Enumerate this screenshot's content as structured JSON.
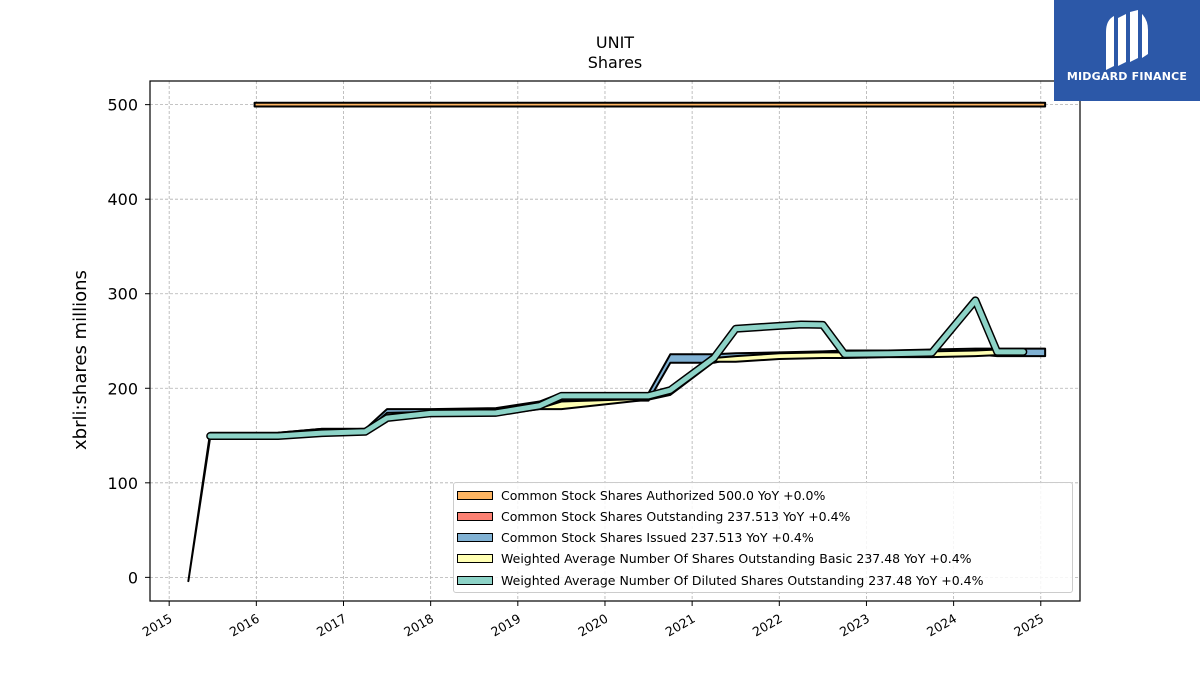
{
  "logo": {
    "text": "MIDGARD FINANCE",
    "color": "#2c58a8"
  },
  "chart_data": {
    "type": "area",
    "title": "UNIT",
    "subtitle": "Shares",
    "ylabel": "xbrli:shares millions",
    "xlabel": "",
    "xlim": [
      2014.78,
      2025.45
    ],
    "ylim": [
      -25,
      525
    ],
    "yticks": [
      0,
      100,
      200,
      300,
      400,
      500
    ],
    "xticks": [
      "2015",
      "2016",
      "2017",
      "2018",
      "2019",
      "2020",
      "2021",
      "2022",
      "2023",
      "2024",
      "2025"
    ],
    "grid": true,
    "legend_position": "lower-right",
    "series": [
      {
        "name": "Common Stock Shares Authorized  500.0 YoY +0.0%",
        "color": "#fdb462",
        "x": [
          2015.98,
          2025.05
        ],
        "low": [
          498,
          498
        ],
        "high": [
          502,
          502
        ]
      },
      {
        "name": "Common Stock Shares Outstanding  237.513 YoY +0.4%",
        "color": "#fb8072",
        "x": [
          2016.25,
          2016.75,
          2017.25
        ],
        "low": [
          153,
          157,
          157
        ],
        "high": [
          153,
          157,
          157
        ]
      },
      {
        "name": "Common Stock Shares Issued  237.513 YoY +0.4%",
        "color": "#80b1d3",
        "x": [
          2015.22,
          2015.47,
          2016.25,
          2016.75,
          2017.25,
          2017.5,
          2018.0,
          2018.75,
          2019.25,
          2019.5,
          2020.5,
          2020.75,
          2021.25,
          2021.5,
          2022.0,
          2022.5,
          2022.75,
          2023.25,
          2023.75,
          2024.25,
          2024.5,
          2024.8,
          2025.05
        ],
        "low": [
          -4,
          148,
          148,
          151,
          154,
          174,
          175,
          176,
          181,
          187,
          187,
          227,
          227,
          232,
          233,
          235,
          234,
          234,
          235,
          236,
          234,
          234,
          234
        ],
        "high": [
          -4,
          153,
          153,
          157,
          157,
          178,
          178,
          179,
          186,
          195,
          195,
          236,
          236,
          237,
          238,
          239,
          240,
          240,
          241,
          242,
          242,
          242,
          242
        ]
      },
      {
        "name": "Weighted Average Number Of Shares Outstanding Basic  237.48 YoY +0.4%",
        "color": "#ffffb3",
        "x": [
          2017.5,
          2018.0,
          2018.75,
          2019.25,
          2019.5,
          2020.5,
          2020.75,
          2021.25,
          2021.5,
          2022.0,
          2022.5,
          2022.75,
          2023.25,
          2023.75,
          2024.25,
          2024.5,
          2024.8
        ],
        "low": [
          166,
          172,
          172,
          178,
          178,
          188,
          193,
          228,
          228,
          231,
          232,
          232,
          233,
          233,
          234,
          235,
          235
        ],
        "high": [
          168,
          175,
          175,
          179,
          186,
          189,
          196,
          232,
          234,
          237,
          238,
          238,
          239,
          239,
          240,
          241,
          241
        ]
      },
      {
        "name": "Weighted Average Number Of Diluted Shares Outstanding  237.48 YoY +0.4%",
        "color": "#8dd3c7",
        "x": [
          2015.47,
          2016.25,
          2016.75,
          2017.25,
          2017.5,
          2018.0,
          2018.75,
          2019.25,
          2019.5,
          2020.5,
          2020.75,
          2021.25,
          2021.5,
          2022.0,
          2022.25,
          2022.5,
          2022.75,
          2023.25,
          2023.75,
          2024.25,
          2024.5,
          2024.8
        ],
        "low": [
          148,
          148,
          150,
          152,
          167,
          172,
          173,
          180,
          190,
          190,
          196,
          230,
          261,
          264,
          265,
          265,
          235,
          235,
          236,
          290,
          238,
          238
        ],
        "high": [
          151,
          151,
          155,
          156,
          170,
          175,
          175,
          183,
          194,
          194,
          200,
          234,
          265,
          268,
          270,
          269,
          237,
          238,
          239,
          296,
          239,
          239
        ]
      }
    ]
  }
}
